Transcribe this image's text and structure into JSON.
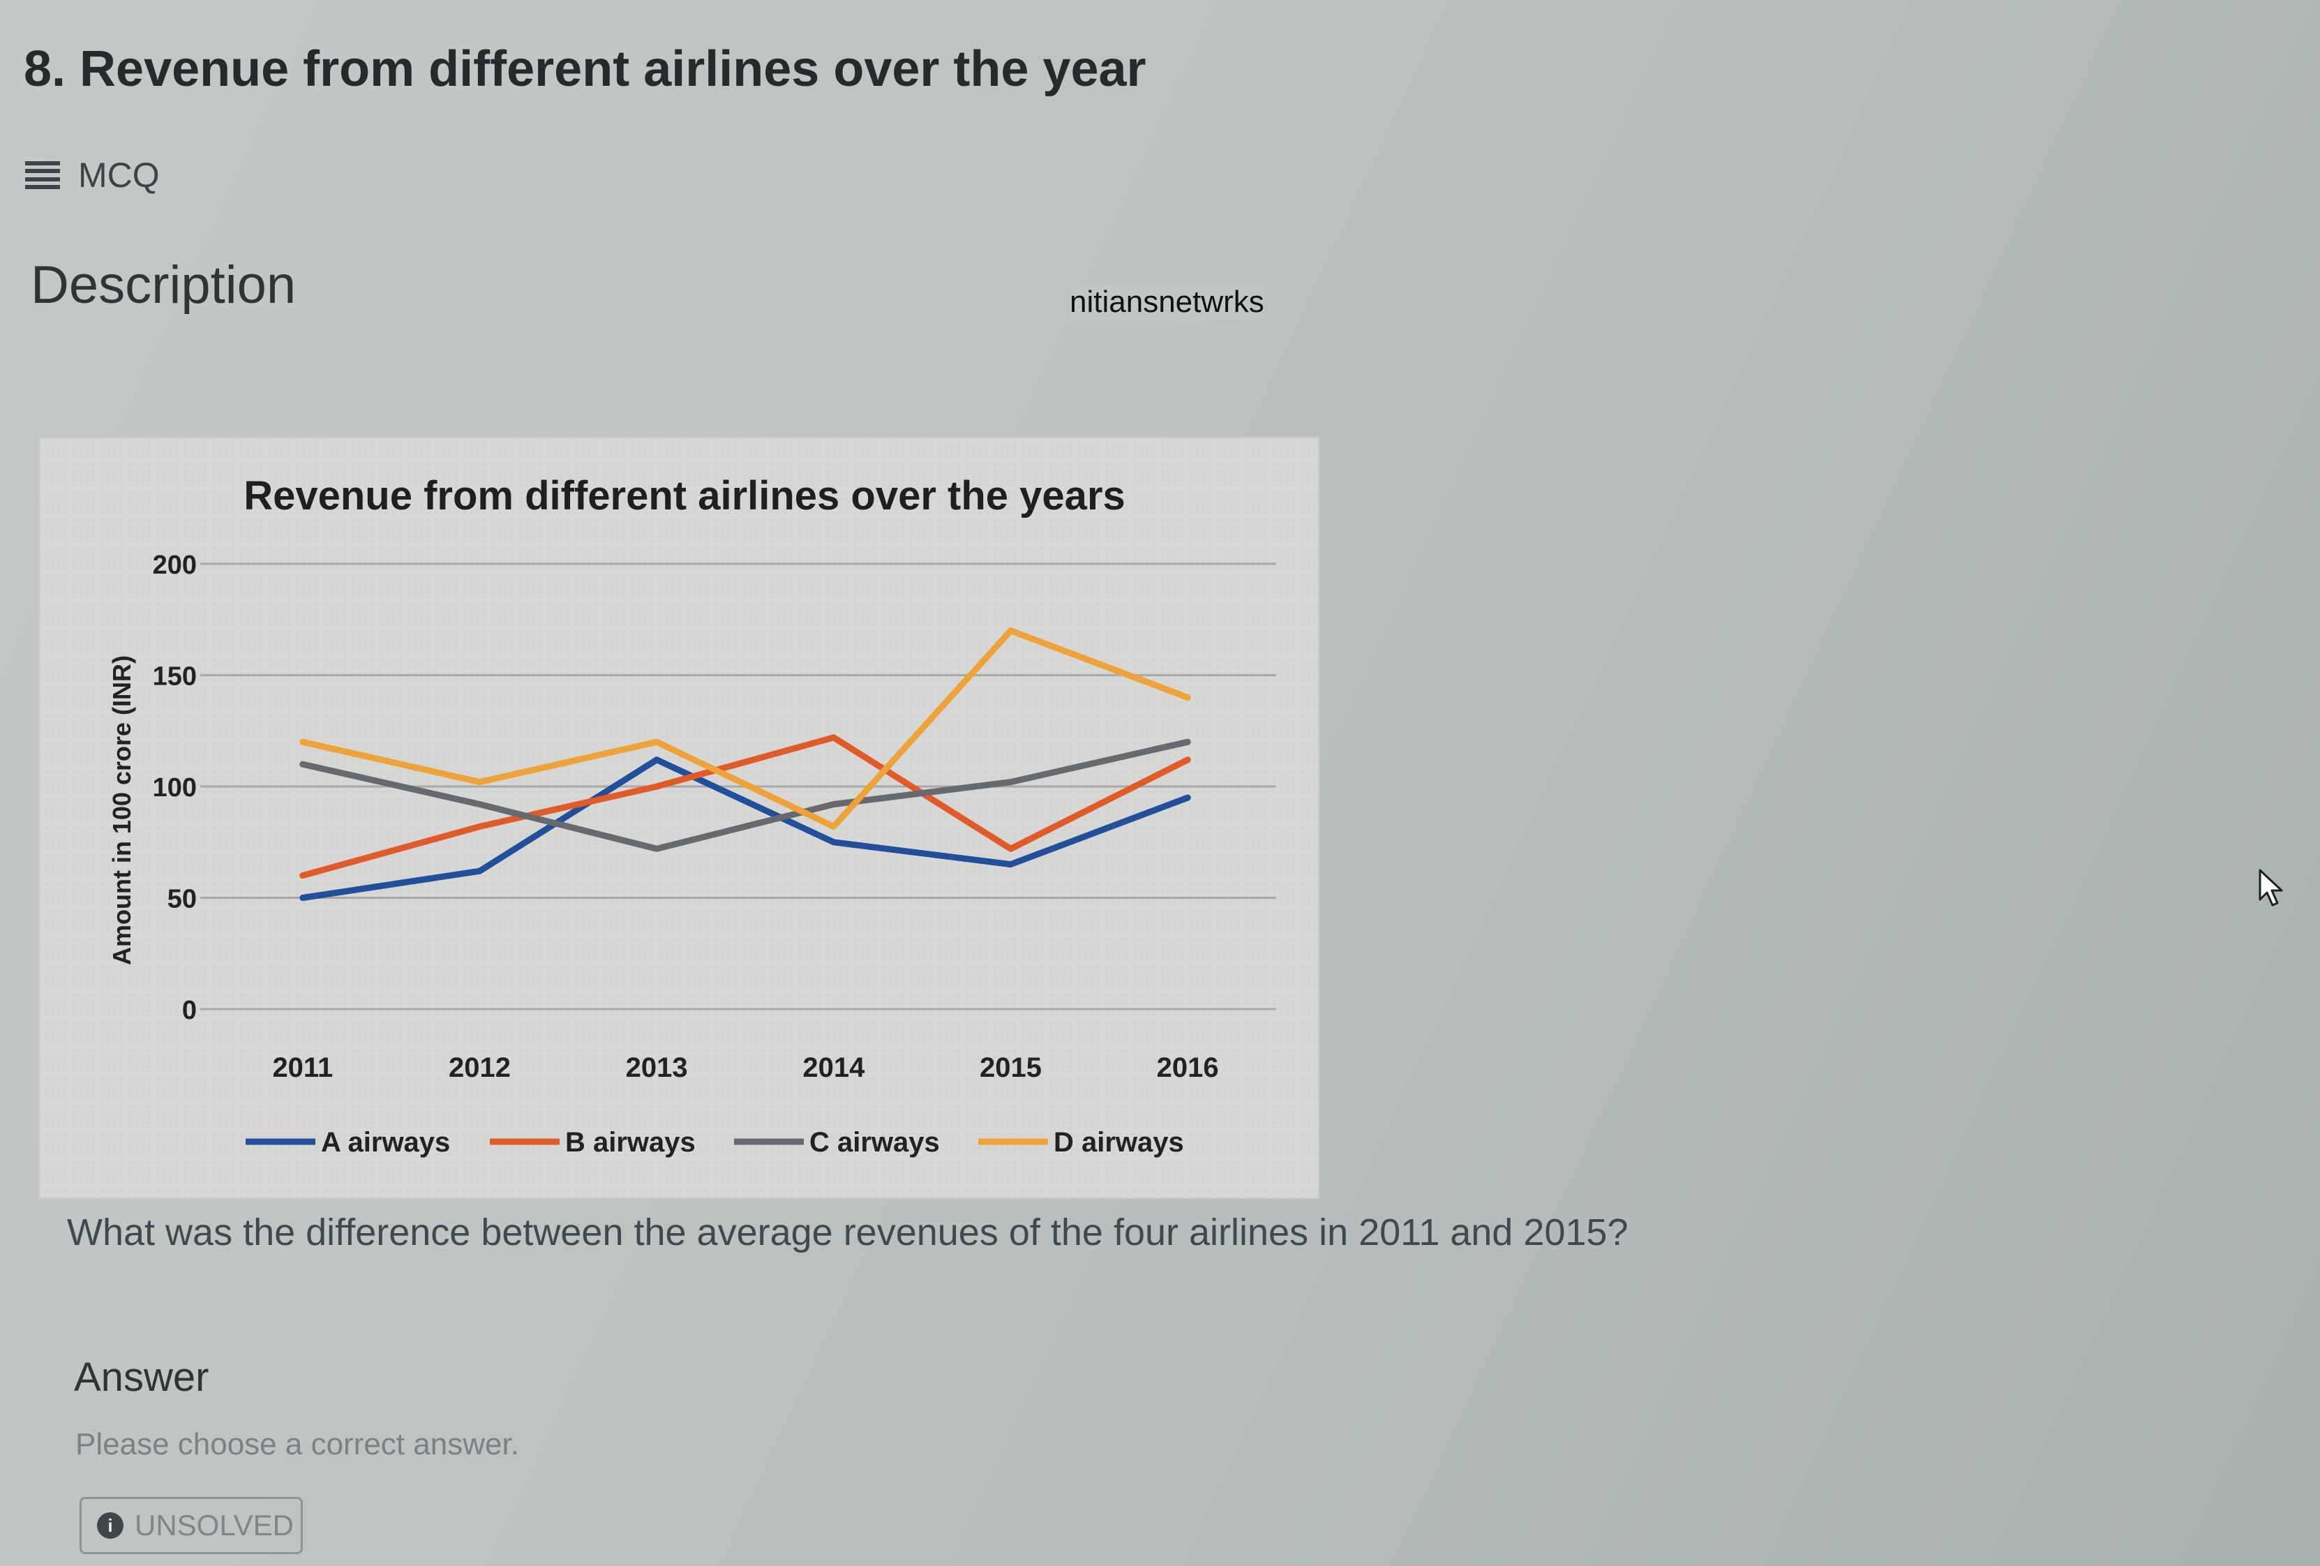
{
  "question": {
    "title": "8. Revenue from different airlines over the year",
    "type_icon": "list-icon",
    "type_label": "MCQ",
    "description_heading": "Description",
    "watermark": "nitiansnetwrks",
    "text": "What was the difference between the average revenues of the four airlines in 2011 and 2015?",
    "answer_heading": "Answer",
    "answer_hint": "Please choose a correct answer.",
    "status_icon": "info-icon",
    "status_label": "UNSOLVED"
  },
  "chart_data": {
    "type": "line",
    "title": "Revenue from different airlines over the years",
    "ylabel": "Amount in 100 crore (INR)",
    "xlabel": "",
    "ylim": [
      0,
      200
    ],
    "y_ticks": [
      0,
      50,
      100,
      150,
      200
    ],
    "grid": "horizontal",
    "legend_position": "bottom",
    "categories": [
      "2011",
      "2012",
      "2013",
      "2014",
      "2015",
      "2016"
    ],
    "series": [
      {
        "name": "A airways",
        "color": "#214f9a",
        "values": [
          50,
          62,
          112,
          75,
          65,
          95
        ]
      },
      {
        "name": "B airways",
        "color": "#e05a2a",
        "values": [
          60,
          82,
          100,
          122,
          72,
          112
        ]
      },
      {
        "name": "C airways",
        "color": "#666a6e",
        "values": [
          110,
          92,
          72,
          92,
          102,
          120
        ]
      },
      {
        "name": "D airways",
        "color": "#eda23a",
        "values": [
          120,
          102,
          120,
          82,
          170,
          140
        ]
      }
    ]
  }
}
